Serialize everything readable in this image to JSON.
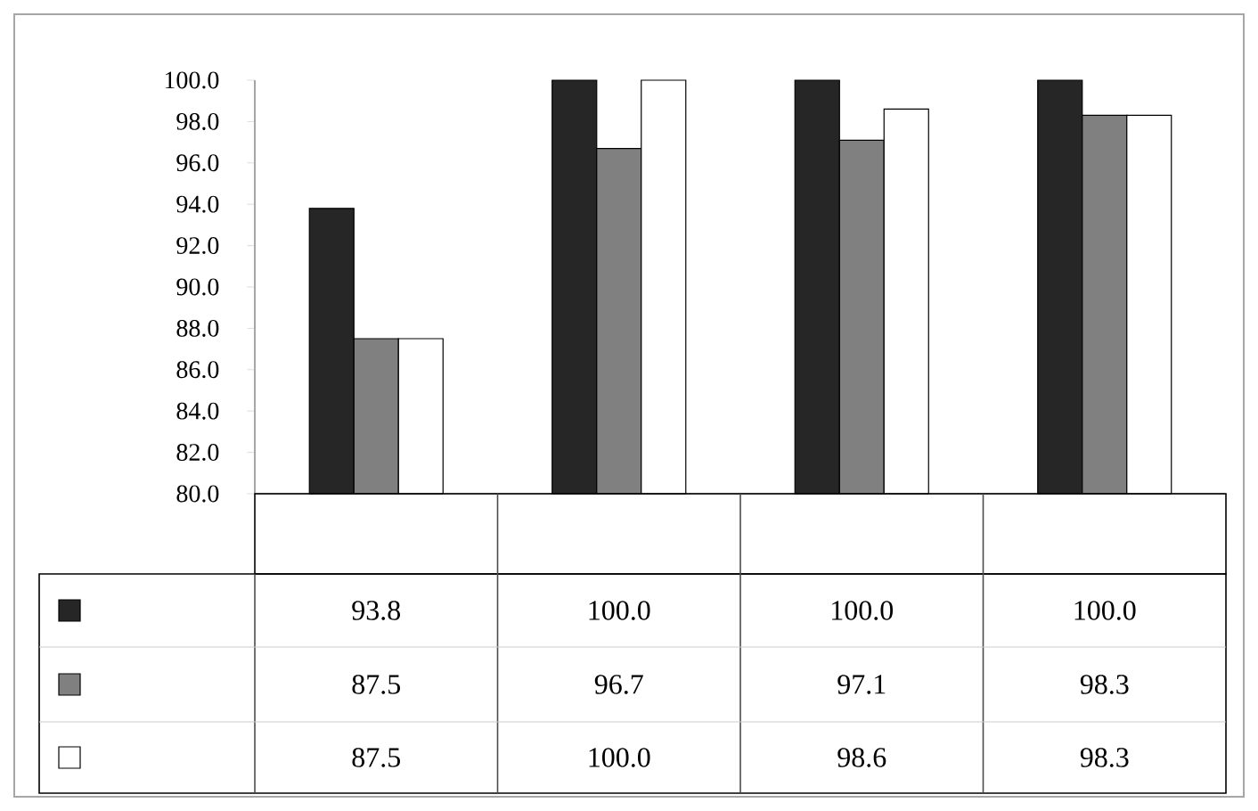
{
  "chart_data": {
    "type": "bar",
    "categories": [
      null,
      null,
      null,
      null
    ],
    "series": [
      {
        "color": "#262626",
        "values": [
          93.8,
          100,
          100,
          100
        ],
        "value_labels": [
          "93.8",
          "100.0",
          "100.0",
          "100.0"
        ]
      },
      {
        "color": "#808080",
        "values": [
          87.5,
          96.7,
          97.1,
          98.3
        ],
        "value_labels": [
          "87.5",
          "96.7",
          "97.1",
          "98.3"
        ]
      },
      {
        "color": "#ffffff",
        "values": [
          87.5,
          100,
          98.6,
          98.3
        ],
        "value_labels": [
          "87.5",
          "100.0",
          "98.6",
          "98.3"
        ]
      }
    ],
    "ylim": [
      80,
      100
    ],
    "yticks": [
      {
        "value": 80,
        "label": "80.0"
      },
      {
        "value": 82,
        "label": "82.0"
      },
      {
        "value": 84,
        "label": "84.0"
      },
      {
        "value": 86,
        "label": "86.0"
      },
      {
        "value": 88,
        "label": "88.0"
      },
      {
        "value": 90,
        "label": "90.0"
      },
      {
        "value": 92,
        "label": "92.0"
      },
      {
        "value": 94,
        "label": "94.0"
      },
      {
        "value": 96,
        "label": "96.0"
      },
      {
        "value": 98,
        "label": "98.0"
      },
      {
        "value": 100,
        "label": "100.0"
      }
    ],
    "grid": false
  }
}
